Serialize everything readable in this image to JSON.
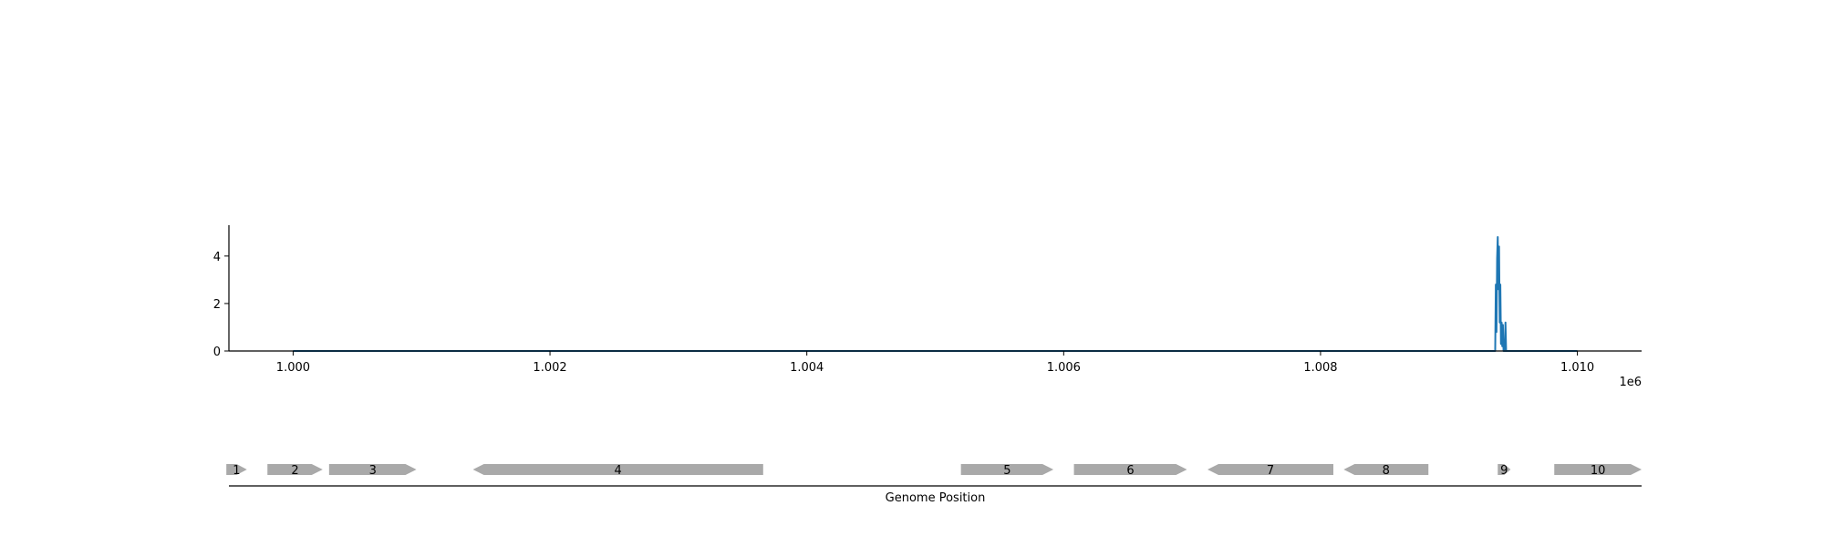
{
  "chart_data": [
    {
      "type": "line",
      "title": "",
      "xlabel": "",
      "ylabel": "",
      "x_offset_label": "1e6",
      "xlim": [
        999500,
        1010500
      ],
      "ylim": [
        0,
        5.3
      ],
      "xticks": [
        1000000,
        1002000,
        1004000,
        1006000,
        1008000,
        1010000
      ],
      "xtick_labels": [
        "1.000",
        "1.002",
        "1.004",
        "1.006",
        "1.008",
        "1.010"
      ],
      "yticks": [
        0,
        2,
        4
      ],
      "ytick_labels": [
        "0",
        "2",
        "4"
      ],
      "grid": false,
      "legend": "none",
      "color": "#1f77b4",
      "series": [
        {
          "x": [
            1000000,
            1009350,
            1009360,
            1009365,
            1009370,
            1009375,
            1009380,
            1009385,
            1009390,
            1009395,
            1009400,
            1009405,
            1009410,
            1009415,
            1009420,
            1009425,
            1009430,
            1009435,
            1009440,
            1009445,
            1009450,
            1009455,
            1009460,
            1009465,
            1010000
          ],
          "y": [
            0,
            0,
            0,
            2.8,
            0.8,
            3.9,
            4.8,
            2.6,
            4.4,
            1.2,
            2.8,
            0.3,
            1.2,
            0.2,
            1.1,
            0,
            0,
            0,
            1.2,
            0,
            0,
            0,
            0,
            0,
            0
          ]
        }
      ]
    },
    {
      "type": "gene_track",
      "xlabel": "Genome Position",
      "genes": [
        {
          "label": "1",
          "start": 999480,
          "end": 999640,
          "strand": "+"
        },
        {
          "label": "2",
          "start": 999800,
          "end": 1000230,
          "strand": "+"
        },
        {
          "label": "3",
          "start": 1000280,
          "end": 1000960,
          "strand": "+"
        },
        {
          "label": "4",
          "start": 1001400,
          "end": 1003660,
          "strand": "-"
        },
        {
          "label": "5",
          "start": 1005200,
          "end": 1005920,
          "strand": "+"
        },
        {
          "label": "6",
          "start": 1006080,
          "end": 1006960,
          "strand": "+"
        },
        {
          "label": "7",
          "start": 1007120,
          "end": 1008100,
          "strand": "-"
        },
        {
          "label": "8",
          "start": 1008180,
          "end": 1008840,
          "strand": "-"
        },
        {
          "label": "9",
          "start": 1009380,
          "end": 1009480,
          "strand": "+"
        },
        {
          "label": "10",
          "start": 1009820,
          "end": 1010500,
          "strand": "+"
        }
      ]
    }
  ]
}
